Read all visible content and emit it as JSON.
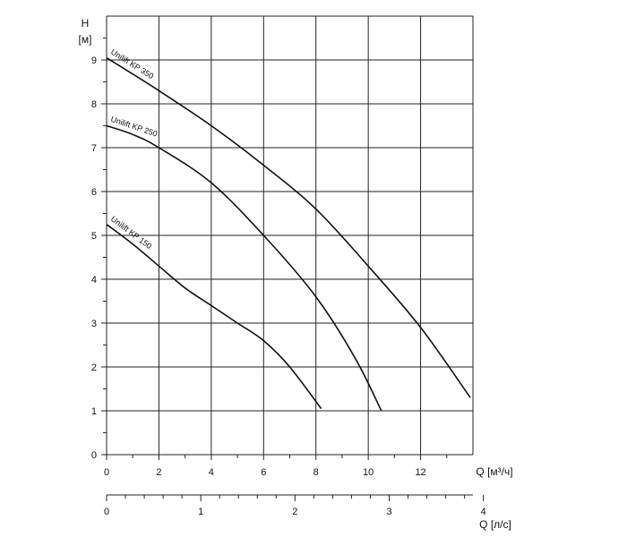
{
  "chart_data": {
    "type": "line",
    "y_axis": {
      "label_symbol": "H",
      "label_unit": "[м]",
      "range": [
        0,
        10
      ],
      "ticks": [
        0,
        1,
        2,
        3,
        4,
        5,
        6,
        7,
        8,
        9
      ],
      "minor_step": 0.5
    },
    "x_axis": {
      "label": "Q [м³/ч]",
      "range": [
        0,
        14
      ],
      "ticks": [
        0,
        2,
        4,
        6,
        8,
        10,
        12
      ],
      "minor_step": 1
    },
    "x_axis_secondary": {
      "label": "Q [л/с]",
      "range": [
        0,
        3.889
      ],
      "ticks": [
        0,
        1,
        2,
        3,
        4
      ],
      "minor_step": 0.2
    },
    "grid": true,
    "series": [
      {
        "name": "Unilift KP 350",
        "points": [
          [
            0,
            9.05
          ],
          [
            2,
            8.3
          ],
          [
            4,
            7.5
          ],
          [
            6,
            6.6
          ],
          [
            8,
            5.6
          ],
          [
            10,
            4.3
          ],
          [
            12,
            2.9
          ],
          [
            13.9,
            1.3
          ]
        ]
      },
      {
        "name": "Unilift KP 250",
        "points": [
          [
            0,
            7.5
          ],
          [
            1,
            7.3
          ],
          [
            2,
            7.0
          ],
          [
            4,
            6.2
          ],
          [
            6,
            5.0
          ],
          [
            8,
            3.6
          ],
          [
            9.5,
            2.2
          ],
          [
            10.5,
            1.0
          ]
        ]
      },
      {
        "name": "Unilift KP 150",
        "points": [
          [
            0,
            5.25
          ],
          [
            1,
            4.8
          ],
          [
            2,
            4.3
          ],
          [
            3,
            3.8
          ],
          [
            4,
            3.4
          ],
          [
            5,
            3.0
          ],
          [
            6,
            2.6
          ],
          [
            7,
            2.0
          ],
          [
            8.2,
            1.05
          ]
        ]
      }
    ]
  }
}
